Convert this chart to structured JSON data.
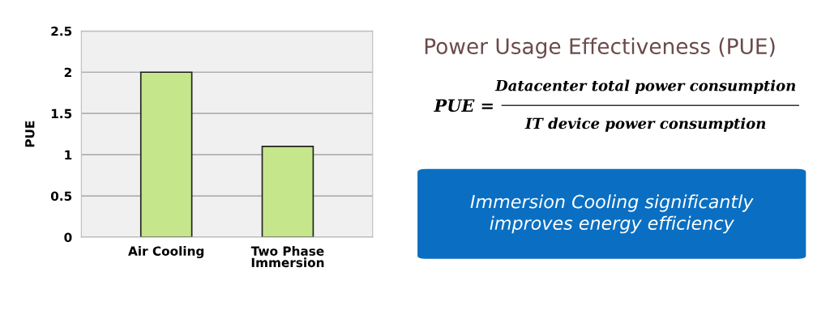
{
  "chart_data": {
    "type": "bar",
    "title": "Power Usage Effectiveness (PUE)",
    "ylabel": "PUE",
    "categories": [
      "Air Cooling",
      "Two Phase\nImmersion"
    ],
    "values": [
      2,
      1.1
    ],
    "color": "#c6e68c",
    "ylim": [
      0,
      2.5
    ],
    "yticks": [
      0,
      0.5,
      1,
      1.5,
      2,
      2.5
    ],
    "grid": "y",
    "annotations": [
      "PUE =",
      "Datacenter total power consumption",
      "IT device power consumption",
      "Immersion Cooling significantly\nimproves energy efficiency"
    ]
  }
}
